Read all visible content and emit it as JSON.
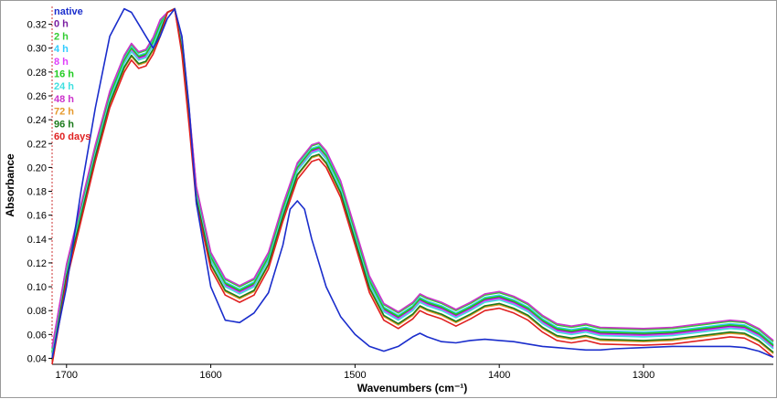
{
  "chart_data": {
    "type": "line",
    "title": "",
    "xlabel": "Wavenumbers (cm⁻¹)",
    "ylabel": "Absorbance",
    "xlim": [
      1710,
      1210
    ],
    "ylim": [
      0.035,
      0.335
    ],
    "x_reversed": true,
    "x_ticks": [
      1700,
      1600,
      1500,
      1400,
      1300
    ],
    "y_ticks": [
      0.04,
      0.06,
      0.08,
      0.1,
      0.12,
      0.14,
      0.16,
      0.18,
      0.2,
      0.22,
      0.24,
      0.26,
      0.28,
      0.3,
      0.32
    ],
    "grid": false,
    "legend_position": "top-left",
    "series": [
      {
        "name": "native",
        "color": "#1a2dcc",
        "shape": "native",
        "offset": 0
      },
      {
        "name": "0 h",
        "color": "#7b1fa2",
        "shape": "treated",
        "offset": 0.004
      },
      {
        "name": "2 h",
        "color": "#33cc33",
        "shape": "treated",
        "offset": 0.008
      },
      {
        "name": "4 h",
        "color": "#33ccff",
        "shape": "treated",
        "offset": 0.006
      },
      {
        "name": "8 h",
        "color": "#e040fb",
        "shape": "treated",
        "offset": 0.003
      },
      {
        "name": "16 h",
        "color": "#22cc22",
        "shape": "treated",
        "offset": 0.005
      },
      {
        "name": "24 h",
        "color": "#40e0e0",
        "shape": "treated",
        "offset": 0.002
      },
      {
        "name": "48 h",
        "color": "#cc33cc",
        "shape": "treated",
        "offset": 0.009
      },
      {
        "name": "72 h",
        "color": "#e69a2e",
        "shape": "treated",
        "offset": -0.002
      },
      {
        "name": "96 h",
        "color": "#1b7a1b",
        "shape": "treated",
        "offset": -0.001
      },
      {
        "name": "60 days",
        "color": "#e02020",
        "shape": "treated",
        "offset": -0.005
      }
    ],
    "profiles": {
      "native": {
        "x": [
          1710,
          1700,
          1690,
          1680,
          1670,
          1660,
          1655,
          1650,
          1645,
          1640,
          1635,
          1630,
          1625,
          1620,
          1615,
          1610,
          1600,
          1590,
          1580,
          1570,
          1560,
          1550,
          1545,
          1540,
          1535,
          1530,
          1520,
          1510,
          1500,
          1490,
          1480,
          1470,
          1460,
          1455,
          1450,
          1440,
          1430,
          1420,
          1410,
          1400,
          1390,
          1380,
          1370,
          1360,
          1350,
          1340,
          1330,
          1320,
          1300,
          1280,
          1260,
          1240,
          1230,
          1220,
          1210
        ],
        "y": [
          0.04,
          0.1,
          0.18,
          0.25,
          0.31,
          0.333,
          0.33,
          0.32,
          0.31,
          0.3,
          0.31,
          0.325,
          0.333,
          0.31,
          0.25,
          0.17,
          0.1,
          0.072,
          0.07,
          0.078,
          0.095,
          0.135,
          0.165,
          0.172,
          0.165,
          0.14,
          0.1,
          0.075,
          0.06,
          0.05,
          0.046,
          0.05,
          0.058,
          0.061,
          0.058,
          0.054,
          0.053,
          0.055,
          0.056,
          0.055,
          0.054,
          0.052,
          0.05,
          0.049,
          0.048,
          0.047,
          0.047,
          0.048,
          0.049,
          0.05,
          0.05,
          0.05,
          0.049,
          0.046,
          0.041
        ]
      },
      "treated": {
        "x": [
          1710,
          1700,
          1690,
          1680,
          1670,
          1660,
          1655,
          1650,
          1645,
          1640,
          1635,
          1630,
          1625,
          1620,
          1615,
          1610,
          1600,
          1590,
          1580,
          1570,
          1560,
          1550,
          1540,
          1530,
          1525,
          1520,
          1510,
          1500,
          1490,
          1480,
          1470,
          1460,
          1455,
          1450,
          1440,
          1430,
          1420,
          1410,
          1400,
          1390,
          1380,
          1370,
          1360,
          1350,
          1340,
          1330,
          1300,
          1280,
          1260,
          1240,
          1230,
          1220,
          1210
        ],
        "y": [
          0.04,
          0.11,
          0.16,
          0.21,
          0.255,
          0.285,
          0.295,
          0.288,
          0.29,
          0.3,
          0.315,
          0.33,
          0.333,
          0.3,
          0.24,
          0.175,
          0.12,
          0.098,
          0.092,
          0.098,
          0.12,
          0.16,
          0.195,
          0.21,
          0.212,
          0.205,
          0.18,
          0.14,
          0.1,
          0.077,
          0.07,
          0.078,
          0.085,
          0.082,
          0.078,
          0.072,
          0.078,
          0.085,
          0.087,
          0.083,
          0.077,
          0.067,
          0.06,
          0.058,
          0.06,
          0.057,
          0.056,
          0.057,
          0.06,
          0.063,
          0.062,
          0.056,
          0.046
        ]
      }
    }
  }
}
